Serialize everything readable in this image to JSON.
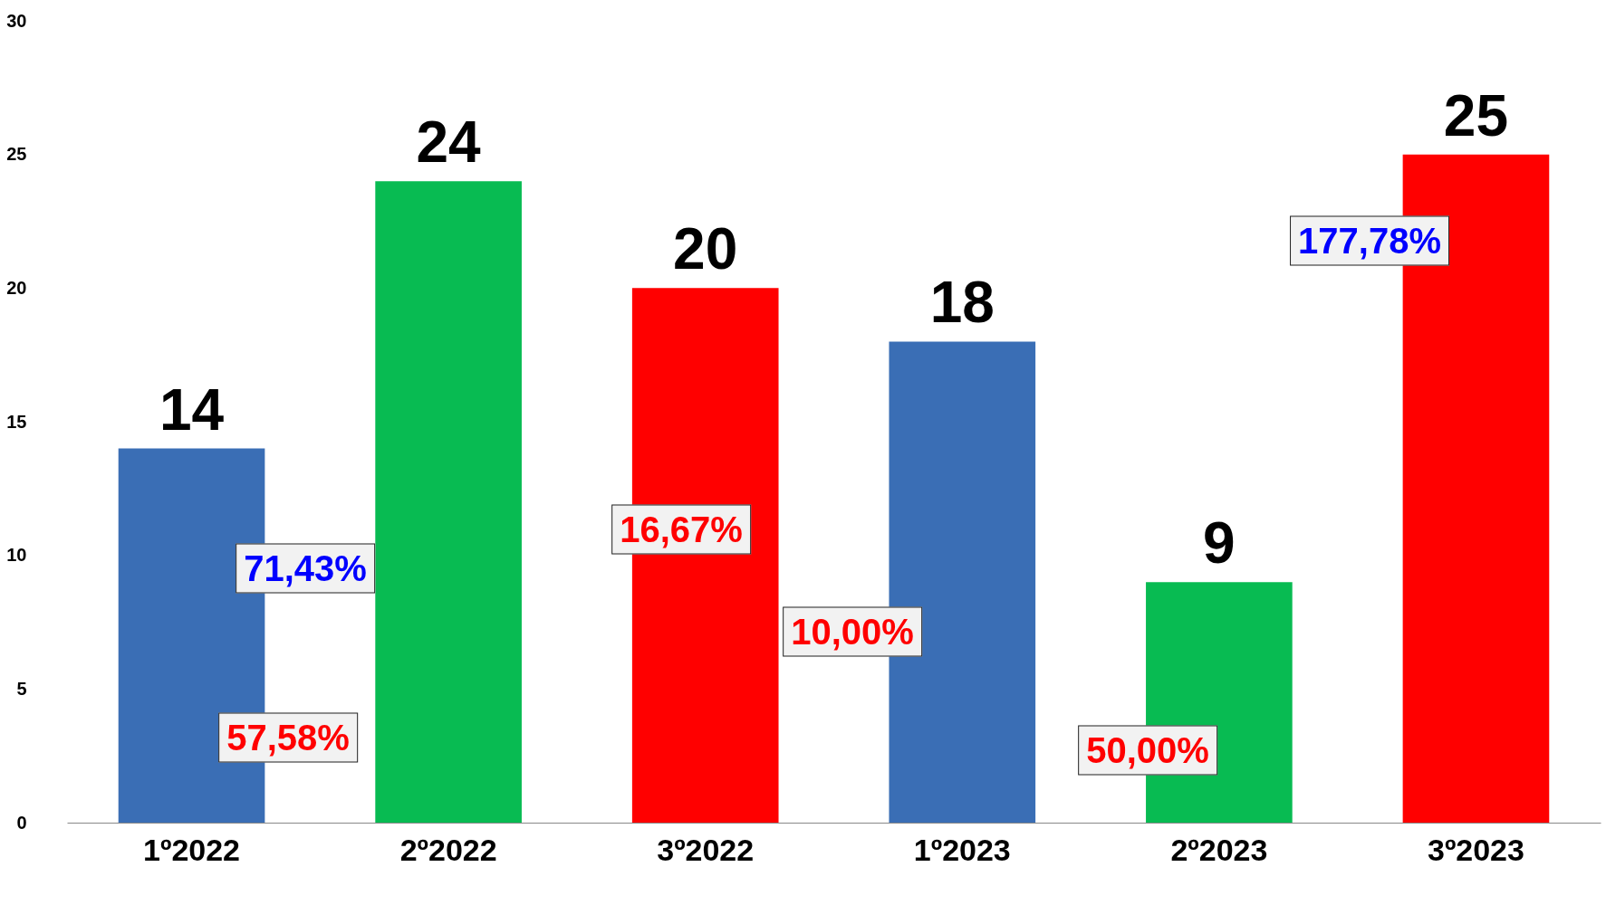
{
  "chart_data": {
    "type": "bar",
    "categories": [
      "1º2022",
      "2º2022",
      "3º2022",
      "1º2023",
      "2º2023",
      "3º2023"
    ],
    "values": [
      14,
      24,
      20,
      18,
      9,
      25
    ],
    "colors": [
      "#3a6eb5",
      "#08bb52",
      "#ff0000",
      "#3a6eb5",
      "#08bb52",
      "#ff0000"
    ],
    "ylim": [
      0,
      30
    ],
    "yticks": [
      0,
      5,
      10,
      15,
      20,
      25,
      30
    ],
    "grid": false,
    "data_labels": true,
    "annotations": [
      "71,43%",
      "57,58%",
      "16,67%",
      "10,00%",
      "50,00%",
      "177,78%"
    ]
  }
}
